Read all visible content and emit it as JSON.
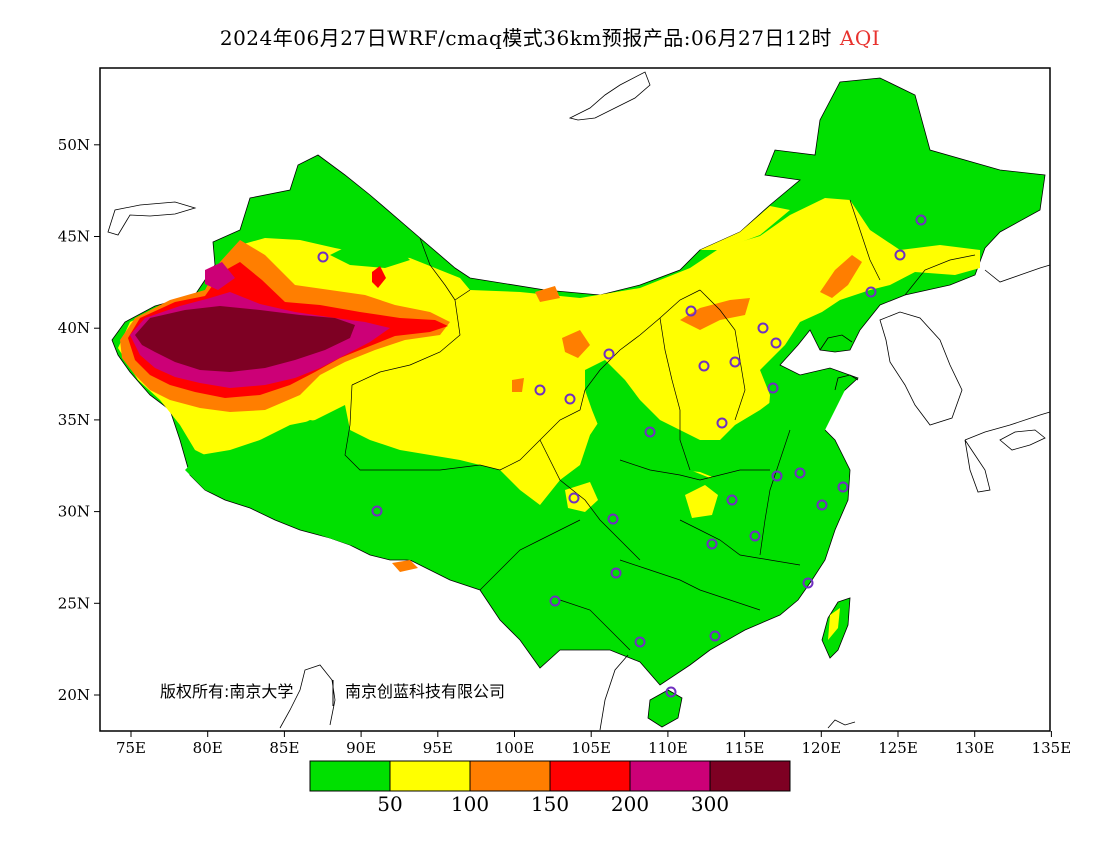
{
  "title": {
    "main": "2024年06月27日WRF/cmaq模式36km预报产品:06月27日12时",
    "variable": "AQI"
  },
  "map": {
    "lon_ticks": [
      "75E",
      "80E",
      "85E",
      "90E",
      "95E",
      "100E",
      "105E",
      "110E",
      "115E",
      "120E",
      "125E",
      "130E",
      "135E"
    ],
    "lat_ticks": [
      "20N",
      "25N",
      "30N",
      "35N",
      "40N",
      "45N",
      "50N"
    ],
    "copyright_owner": "版权所有:南京大学",
    "copyright_partner": "南京创蓝科技有限公司",
    "colors": {
      "green": "#00e000",
      "yellow": "#ffff00",
      "orange": "#ff7e00",
      "red": "#ff0000",
      "purple": "#cc0077",
      "maroon": "#7e0023",
      "station_marker": "#7030c0"
    }
  },
  "legend": {
    "colors": [
      "#00e000",
      "#ffff00",
      "#ff7e00",
      "#ff0000",
      "#cc0077",
      "#7e0023"
    ],
    "labels": [
      "50",
      "100",
      "150",
      "200",
      "300"
    ]
  }
}
